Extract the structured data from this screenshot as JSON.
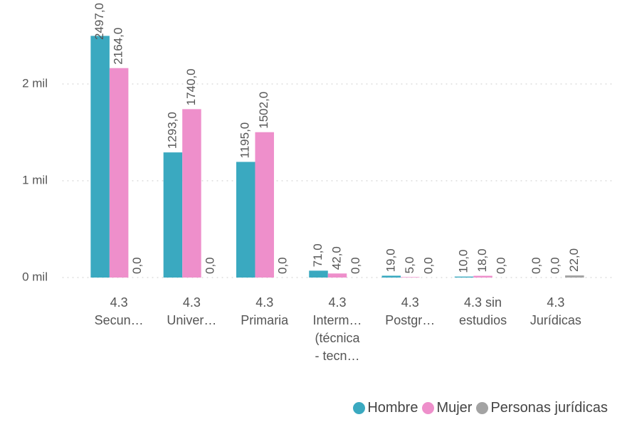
{
  "chart_data": {
    "type": "bar",
    "categories": [
      "4.3\nSecun…",
      "4.3\nUniver…",
      "4.3\nPrimaria",
      "4.3\nInterm…\n(técnica\n- tecn…",
      "4.3\nPostgr…",
      "4.3 sin\nestudios",
      "4.3\nJurídicas"
    ],
    "series": [
      {
        "name": "Hombre",
        "color": "#3aa9c0",
        "values": [
          2497,
          1293,
          1195,
          71,
          19,
          10,
          0
        ],
        "value_labels": [
          "2497,0",
          "1293,0",
          "1195,0",
          "71,0",
          "19,0",
          "10,0",
          "0,0"
        ]
      },
      {
        "name": "Mujer",
        "color": "#ee8fcb",
        "values": [
          2164,
          1740,
          1502,
          42,
          5,
          18,
          0
        ],
        "value_labels": [
          "2164,0",
          "1740,0",
          "1502,0",
          "42,0",
          "5,0",
          "18,0",
          "0,0"
        ]
      },
      {
        "name": "Personas jurídicas",
        "color": "#a3a3a3",
        "values": [
          0,
          0,
          0,
          0,
          0,
          0,
          22
        ],
        "value_labels": [
          "0,0",
          "0,0",
          "0,0",
          "0,0",
          "0,0",
          "0,0",
          "22,0"
        ]
      }
    ],
    "ylim": [
      0,
      2800
    ],
    "yticks": [
      {
        "value": 0,
        "label": "0 mil"
      },
      {
        "value": 1000,
        "label": "1 mil"
      },
      {
        "value": 2000,
        "label": "2 mil"
      }
    ],
    "grid": true,
    "legend": "bottom-right"
  }
}
